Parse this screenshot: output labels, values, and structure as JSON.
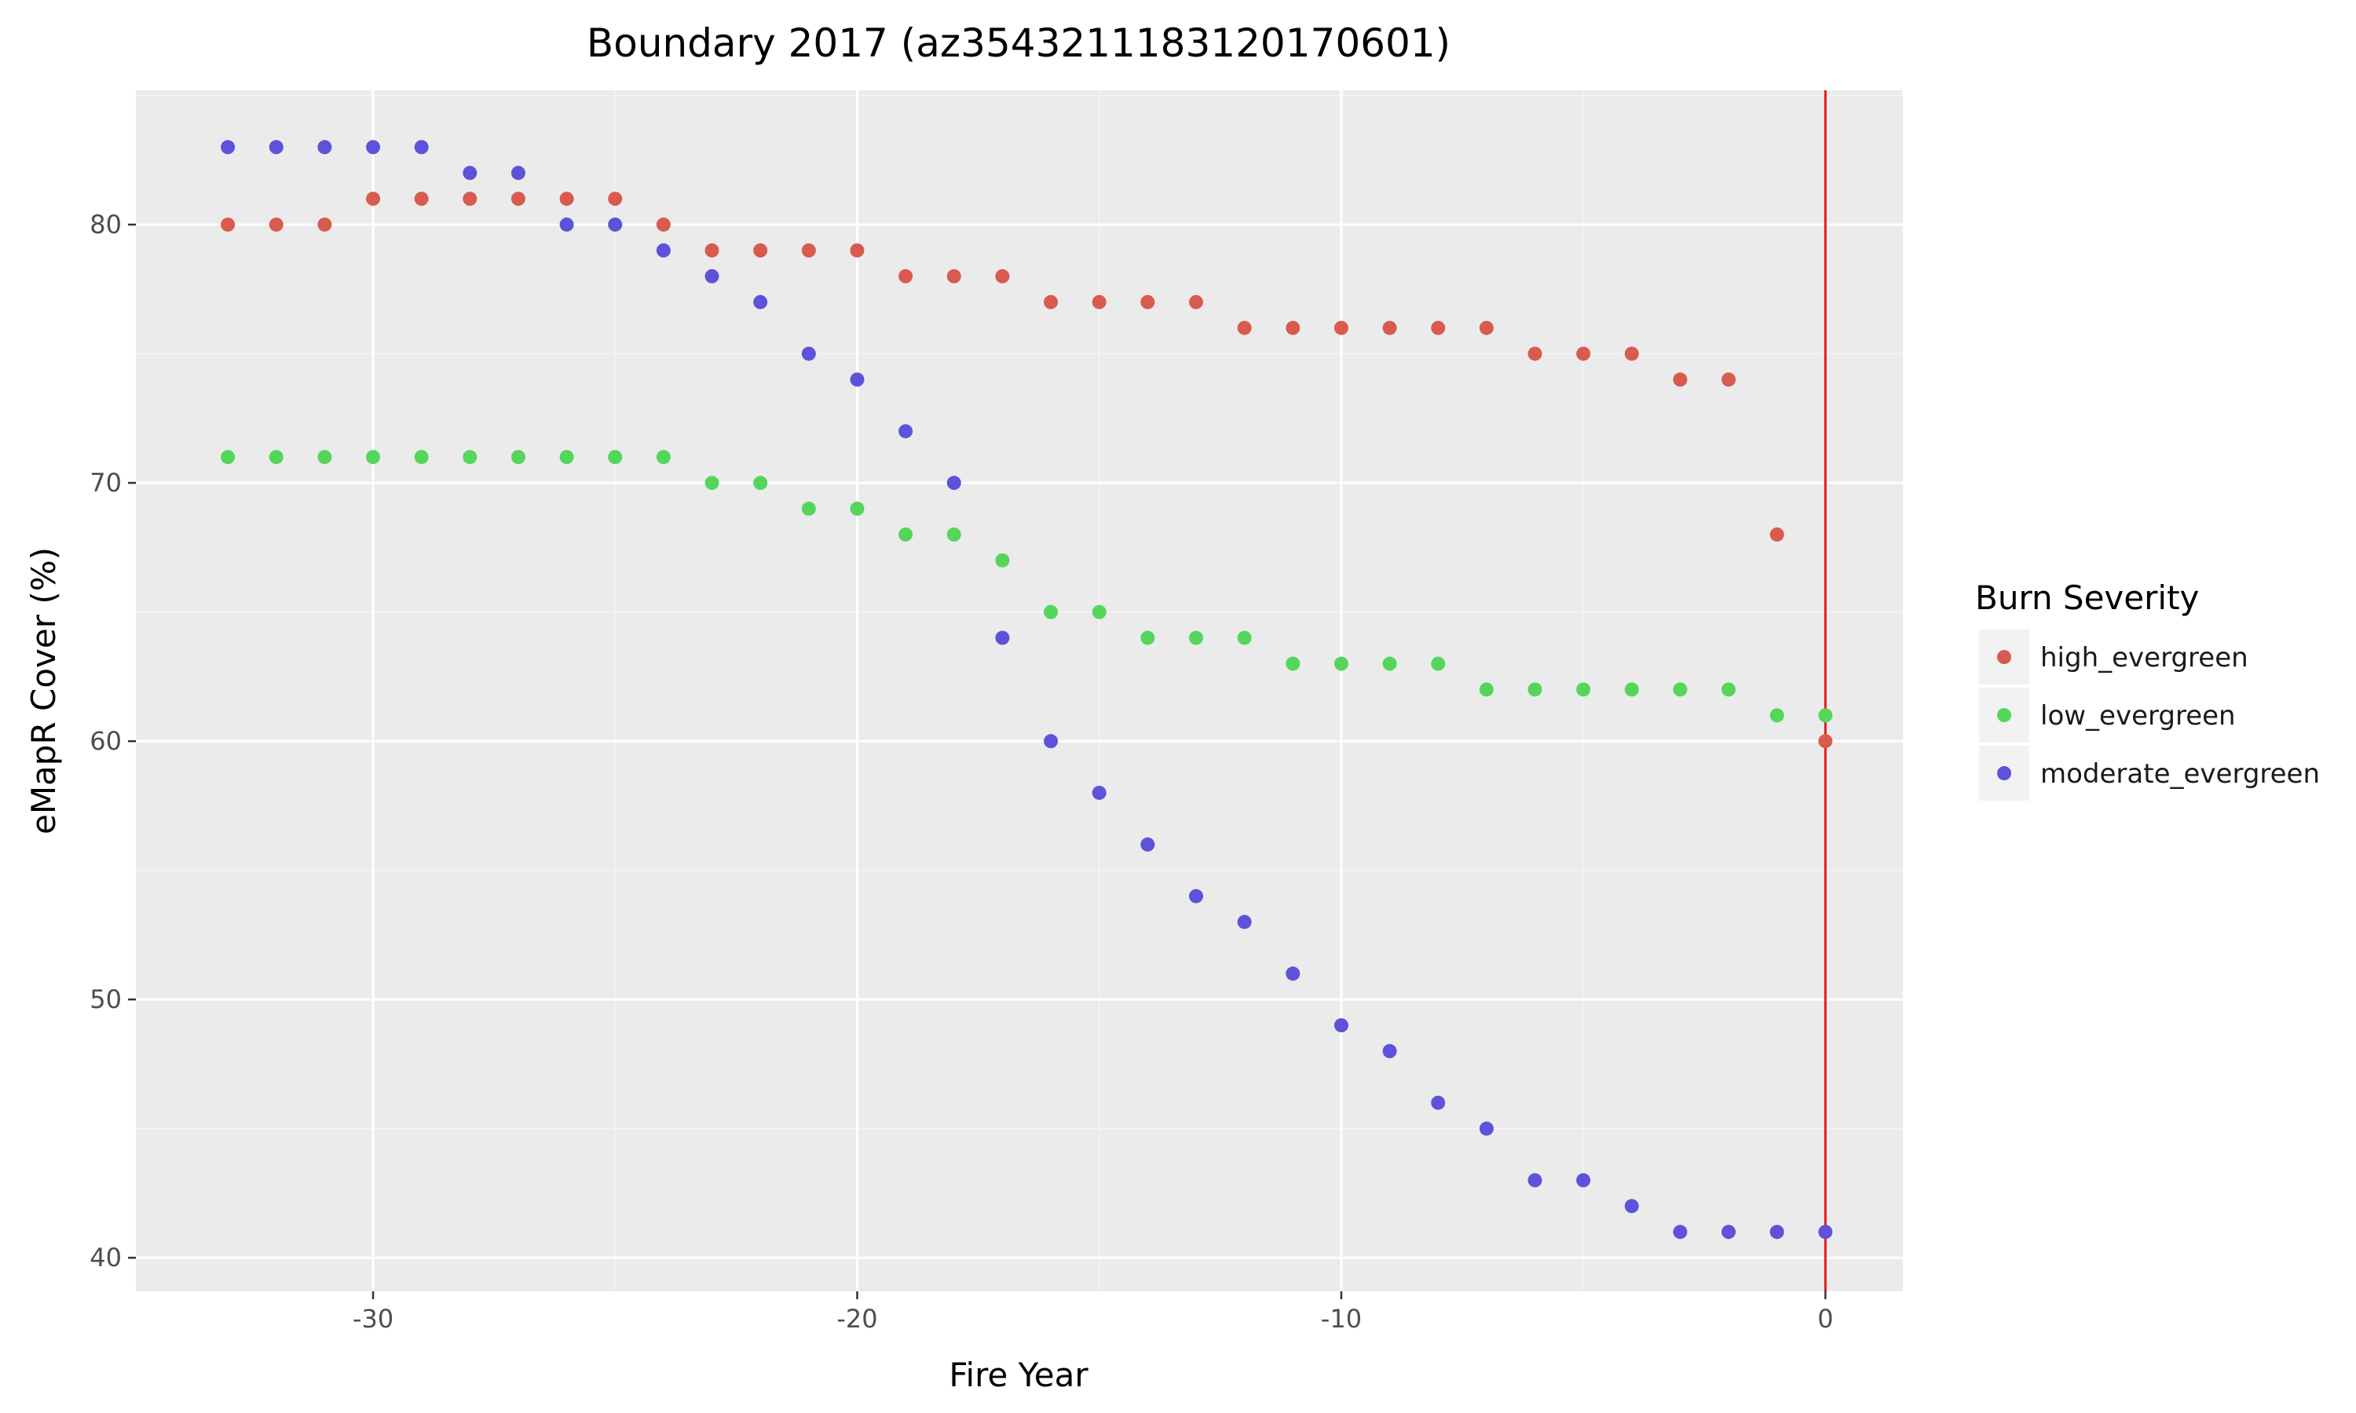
{
  "chart_data": {
    "type": "scatter",
    "title": "Boundary 2017 (az35432111831201706​01)",
    "xlabel": "Fire Year",
    "ylabel": "eMapR Cover (%)",
    "xlim": [
      -34.9,
      1.6
    ],
    "ylim": [
      38.7,
      85.2
    ],
    "x_ticks": [
      -30,
      -20,
      -10,
      0
    ],
    "x_tick_labels": [
      "-30",
      "-20",
      "-10",
      "0"
    ],
    "y_ticks": [
      40,
      50,
      60,
      70,
      80
    ],
    "y_tick_labels": [
      "40",
      "50",
      "60",
      "70",
      "80"
    ],
    "grid": true,
    "reference_line": {
      "x": 0,
      "color": "#e41a1c"
    },
    "legend": {
      "title": "Burn Severity",
      "position": "right"
    },
    "x": [
      -33,
      -32,
      -31,
      -30,
      -29,
      -28,
      -27,
      -26,
      -25,
      -24,
      -23,
      -22,
      -21,
      -20,
      -19,
      -18,
      -17,
      -16,
      -15,
      -14,
      -13,
      -12,
      -11,
      -10,
      -9,
      -8,
      -7,
      -6,
      -5,
      -4,
      -3,
      -2,
      -1,
      0
    ],
    "series": [
      {
        "name": "high_evergreen",
        "color": "#d95a4e",
        "values": [
          80,
          80,
          80,
          81,
          81,
          81,
          81,
          81,
          81,
          80,
          79,
          79,
          79,
          79,
          78,
          78,
          78,
          77,
          77,
          77,
          77,
          76,
          76,
          76,
          76,
          76,
          76,
          75,
          75,
          75,
          74,
          74,
          68,
          60
        ]
      },
      {
        "name": "low_evergreen",
        "color": "#54d65a",
        "values": [
          71,
          71,
          71,
          71,
          71,
          71,
          71,
          71,
          71,
          71,
          70,
          70,
          69,
          69,
          68,
          68,
          67,
          65,
          65,
          64,
          64,
          64,
          63,
          63,
          63,
          63,
          62,
          62,
          62,
          62,
          62,
          62,
          61,
          61
        ]
      },
      {
        "name": "moderate_evergreen",
        "color": "#5d52d9",
        "values": [
          83,
          83,
          83,
          83,
          83,
          82,
          82,
          80,
          80,
          79,
          78,
          77,
          75,
          74,
          72,
          70,
          64,
          60,
          58,
          56,
          54,
          53,
          51,
          49,
          48,
          46,
          45,
          43,
          43,
          42,
          41,
          41,
          41,
          41
        ]
      }
    ]
  }
}
